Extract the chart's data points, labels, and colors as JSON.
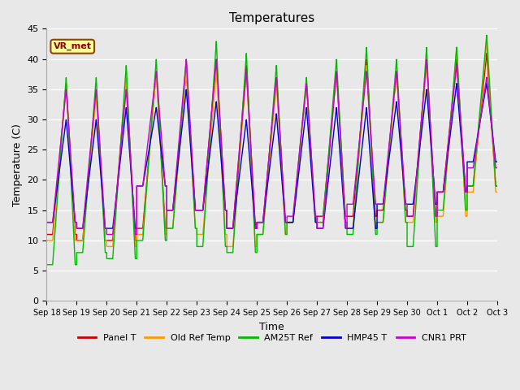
{
  "title": "Temperatures",
  "xlabel": "Time",
  "ylabel": "Temperature (C)",
  "annotation": "VR_met",
  "ylim": [
    0,
    45
  ],
  "xlim": [
    0,
    15
  ],
  "tick_labels": [
    "Sep 18",
    "Sep 19",
    "Sep 20",
    "Sep 21",
    "Sep 22",
    "Sep 23",
    "Sep 24",
    "Sep 25",
    "Sep 26",
    "Sep 27",
    "Sep 28",
    "Sep 29",
    "Sep 30",
    "Oct 1",
    "Oct 2",
    "Oct 3"
  ],
  "yticks": [
    0,
    5,
    10,
    15,
    20,
    25,
    30,
    35,
    40,
    45
  ],
  "series_order": [
    "Panel T",
    "Old Ref Temp",
    "AM25T Ref",
    "HMP45 T",
    "CNR1 PRT"
  ],
  "series": {
    "Panel T": {
      "color": "#cc0000",
      "lw": 1.0
    },
    "Old Ref Temp": {
      "color": "#ff9900",
      "lw": 1.0
    },
    "AM25T Ref": {
      "color": "#00bb00",
      "lw": 1.0
    },
    "HMP45 T": {
      "color": "#0000cc",
      "lw": 1.0
    },
    "CNR1 PRT": {
      "color": "#cc00cc",
      "lw": 1.0
    }
  },
  "plot_bg": "#e8e8e8",
  "fig_bg": "#e8e8e8",
  "grid_color": "#ffffff",
  "day_data": [
    {
      "peak_green": 37,
      "trough_green": 6,
      "peak_red": 36,
      "trough_red": 11,
      "peak_orange": 36,
      "trough_orange": 10,
      "peak_blue": 30,
      "trough_blue": 13,
      "peak_purple": 35,
      "trough_purple": 13
    },
    {
      "peak_green": 37,
      "trough_green": 8,
      "peak_red": 35,
      "trough_red": 10,
      "peak_orange": 34,
      "trough_orange": 10,
      "peak_blue": 30,
      "trough_blue": 12,
      "peak_purple": 35,
      "trough_purple": 12
    },
    {
      "peak_green": 39,
      "trough_green": 7,
      "peak_red": 37,
      "trough_red": 10,
      "peak_orange": 37,
      "trough_orange": 9,
      "peak_blue": 32,
      "trough_blue": 12,
      "peak_purple": 35,
      "trough_purple": 11
    },
    {
      "peak_green": 40,
      "trough_green": 10,
      "peak_red": 38,
      "trough_red": 12,
      "peak_orange": 38,
      "trough_orange": 11,
      "peak_blue": 32,
      "trough_blue": 19,
      "peak_purple": 38,
      "trough_purple": 19
    },
    {
      "peak_green": 40,
      "trough_green": 12,
      "peak_red": 38,
      "trough_red": 15,
      "peak_orange": 38,
      "trough_orange": 12,
      "peak_blue": 35,
      "trough_blue": 15,
      "peak_purple": 40,
      "trough_purple": 15
    },
    {
      "peak_green": 43,
      "trough_green": 9,
      "peak_red": 40,
      "trough_red": 15,
      "peak_orange": 38,
      "trough_orange": 11,
      "peak_blue": 33,
      "trough_blue": 15,
      "peak_purple": 40,
      "trough_purple": 15
    },
    {
      "peak_green": 41,
      "trough_green": 8,
      "peak_red": 39,
      "trough_red": 12,
      "peak_orange": 38,
      "trough_orange": 9,
      "peak_blue": 30,
      "trough_blue": 12,
      "peak_purple": 38,
      "trough_purple": 12
    },
    {
      "peak_green": 39,
      "trough_green": 11,
      "peak_red": 37,
      "trough_red": 13,
      "peak_orange": 36,
      "trough_orange": 11,
      "peak_blue": 31,
      "trough_blue": 13,
      "peak_purple": 37,
      "trough_purple": 13
    },
    {
      "peak_green": 37,
      "trough_green": 13,
      "peak_red": 36,
      "trough_red": 13,
      "peak_orange": 36,
      "trough_orange": 13,
      "peak_blue": 32,
      "trough_blue": 13,
      "peak_purple": 36,
      "trough_purple": 14
    },
    {
      "peak_green": 40,
      "trough_green": 13,
      "peak_red": 38,
      "trough_red": 14,
      "peak_orange": 38,
      "trough_orange": 13,
      "peak_blue": 32,
      "trough_blue": 12,
      "peak_purple": 38,
      "trough_purple": 12
    },
    {
      "peak_green": 42,
      "trough_green": 11,
      "peak_red": 40,
      "trough_red": 14,
      "peak_orange": 39,
      "trough_orange": 12,
      "peak_blue": 32,
      "trough_blue": 12,
      "peak_purple": 38,
      "trough_purple": 16
    },
    {
      "peak_green": 40,
      "trough_green": 13,
      "peak_red": 38,
      "trough_red": 15,
      "peak_orange": 38,
      "trough_orange": 13,
      "peak_blue": 33,
      "trough_blue": 16,
      "peak_purple": 38,
      "trough_purple": 16
    },
    {
      "peak_green": 42,
      "trough_green": 9,
      "peak_red": 40,
      "trough_red": 14,
      "peak_orange": 39,
      "trough_orange": 13,
      "peak_blue": 35,
      "trough_blue": 16,
      "peak_purple": 40,
      "trough_purple": 14
    },
    {
      "peak_green": 42,
      "trough_green": 15,
      "peak_red": 40,
      "trough_red": 18,
      "peak_orange": 42,
      "trough_orange": 14,
      "peak_blue": 36,
      "trough_blue": 18,
      "peak_purple": 39,
      "trough_purple": 18
    },
    {
      "peak_green": 44,
      "trough_green": 19,
      "peak_red": 41,
      "trough_red": 19,
      "peak_orange": 43,
      "trough_orange": 18,
      "peak_blue": 36,
      "trough_blue": 23,
      "peak_purple": 37,
      "trough_purple": 22
    }
  ]
}
